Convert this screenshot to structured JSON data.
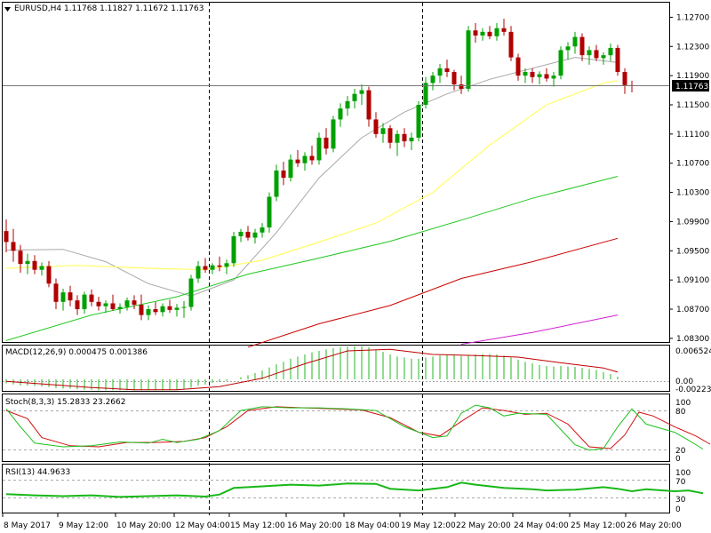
{
  "header": {
    "symbol": "EURUSD,H4",
    "ohlc": "1.11768 1.11827 1.11672 1.11763"
  },
  "price_tag": "1.11763",
  "macd": {
    "label": "MACD(12,26,9) 0.000475 0.001386",
    "ticks": [
      "0.006524",
      "0.00",
      "-0.00223"
    ]
  },
  "stoch": {
    "label": "Stoch(8,3,3) 15.2833 23.2662",
    "ticks": [
      "100",
      "80",
      "20",
      "0"
    ]
  },
  "rsi": {
    "label": "RSI(13) 44.9633",
    "ticks": [
      "100",
      "70",
      "30",
      "0"
    ]
  },
  "time_labels": [
    "8 May 2017",
    "9 May 12:00",
    "10 May 20:00",
    "12 May 04:00",
    "15 May 12:00",
    "16 May 20:00",
    "18 May 04:00",
    "19 May 12:00",
    "22 May 20:00",
    "24 May 04:00",
    "25 May 12:00",
    "26 May 20:00"
  ],
  "colors": {
    "bull": "#00a000",
    "bear": "#b00000",
    "ma_gray": "#a8a8a8",
    "ma_yellow": "#ffff66",
    "ma_green": "#22c822",
    "ma_red": "#cc0000",
    "ma_magenta": "#d020d0",
    "hist": "#22b822",
    "signal": "#c00000"
  },
  "chart_data": {
    "type": "candlestick",
    "symbol": "EURUSD",
    "timeframe": "H4",
    "price_axis": {
      "ticks": [
        "1.12700",
        "1.12300",
        "1.11900",
        "1.11500",
        "1.11100",
        "1.10700",
        "1.10300",
        "1.09900",
        "1.09500",
        "1.09100",
        "1.08700",
        "1.08300"
      ],
      "range": [
        1.0825,
        1.129
      ]
    },
    "candles": [
      [
        1.0977,
        1.0993,
        1.0948,
        1.0962
      ],
      [
        1.0962,
        1.098,
        1.0935,
        1.095
      ],
      [
        1.095,
        1.0958,
        1.092,
        1.0932
      ],
      [
        1.0932,
        1.0946,
        1.0918,
        1.0936
      ],
      [
        1.0936,
        1.0944,
        1.0918,
        1.0924
      ],
      [
        1.0924,
        1.0934,
        1.0916,
        1.0929
      ],
      [
        1.0929,
        1.0936,
        1.09,
        1.0905
      ],
      [
        1.0905,
        1.0912,
        1.087,
        1.088
      ],
      [
        1.088,
        1.0898,
        1.0868,
        1.0893
      ],
      [
        1.0893,
        1.0902,
        1.0874,
        1.0882
      ],
      [
        1.0882,
        1.0889,
        1.0862,
        1.087
      ],
      [
        1.087,
        1.0894,
        1.0864,
        1.089
      ],
      [
        1.089,
        1.0897,
        1.0874,
        1.088
      ],
      [
        1.088,
        1.0887,
        1.0868,
        1.0874
      ],
      [
        1.0874,
        1.0882,
        1.0865,
        1.0878
      ],
      [
        1.0878,
        1.089,
        1.0868,
        1.087
      ],
      [
        1.087,
        1.0878,
        1.0864,
        1.0873
      ],
      [
        1.0873,
        1.0886,
        1.0868,
        1.0882
      ],
      [
        1.0882,
        1.0889,
        1.087,
        1.0876
      ],
      [
        1.0876,
        1.089,
        1.0855,
        1.0862
      ],
      [
        1.0862,
        1.0875,
        1.0855,
        1.087
      ],
      [
        1.087,
        1.088,
        1.0862,
        1.0866
      ],
      [
        1.0866,
        1.0878,
        1.086,
        1.0874
      ],
      [
        1.0874,
        1.0883,
        1.0865,
        1.0869
      ],
      [
        1.0869,
        1.0877,
        1.086,
        1.0872
      ],
      [
        1.0872,
        1.0881,
        1.0858,
        1.0873
      ],
      [
        1.0873,
        1.0917,
        1.0868,
        1.0912
      ],
      [
        1.0912,
        1.0936,
        1.0906,
        1.0929
      ],
      [
        1.0929,
        1.094,
        1.092,
        1.0924
      ],
      [
        1.0924,
        1.0933,
        1.0918,
        1.093
      ],
      [
        1.093,
        1.0942,
        1.0922,
        1.0928
      ],
      [
        1.0928,
        1.0938,
        1.0918,
        1.0933
      ],
      [
        1.0933,
        1.0976,
        1.0928,
        1.097
      ],
      [
        1.097,
        1.098,
        1.0962,
        1.0976
      ],
      [
        1.0976,
        1.0984,
        1.0964,
        1.0968
      ],
      [
        1.0968,
        1.098,
        1.096,
        1.0975
      ],
      [
        1.0975,
        1.0988,
        1.0968,
        1.0982
      ],
      [
        1.0982,
        1.103,
        1.0975,
        1.1024
      ],
      [
        1.1024,
        1.1068,
        1.1018,
        1.106
      ],
      [
        1.106,
        1.1072,
        1.104,
        1.105
      ],
      [
        1.105,
        1.1082,
        1.1045,
        1.1075
      ],
      [
        1.1075,
        1.1088,
        1.1065,
        1.107
      ],
      [
        1.107,
        1.1085,
        1.106,
        1.108
      ],
      [
        1.108,
        1.1094,
        1.1068,
        1.1074
      ],
      [
        1.1074,
        1.1112,
        1.1068,
        1.1105
      ],
      [
        1.1105,
        1.1118,
        1.1082,
        1.109
      ],
      [
        1.109,
        1.1135,
        1.1085,
        1.113
      ],
      [
        1.113,
        1.1152,
        1.112,
        1.1145
      ],
      [
        1.1145,
        1.1162,
        1.1135,
        1.1155
      ],
      [
        1.1155,
        1.1172,
        1.1145,
        1.1165
      ],
      [
        1.1165,
        1.1178,
        1.115,
        1.117
      ],
      [
        1.117,
        1.1175,
        1.112,
        1.113
      ],
      [
        1.113,
        1.114,
        1.1105,
        1.111
      ],
      [
        1.111,
        1.1125,
        1.1098,
        1.1118
      ],
      [
        1.1118,
        1.1122,
        1.109,
        1.1098
      ],
      [
        1.1098,
        1.1115,
        1.108,
        1.111
      ],
      [
        1.111,
        1.1118,
        1.1092,
        1.11
      ],
      [
        1.11,
        1.1112,
        1.1088,
        1.1105
      ],
      [
        1.1105,
        1.1155,
        1.11,
        1.115
      ],
      [
        1.115,
        1.1188,
        1.1145,
        1.118
      ],
      [
        1.118,
        1.1195,
        1.117,
        1.119
      ],
      [
        1.119,
        1.1206,
        1.118,
        1.12
      ],
      [
        1.12,
        1.1212,
        1.1188,
        1.1195
      ],
      [
        1.1195,
        1.1198,
        1.117,
        1.1178
      ],
      [
        1.1178,
        1.119,
        1.1165,
        1.1172
      ],
      [
        1.1172,
        1.1258,
        1.1168,
        1.1252
      ],
      [
        1.1252,
        1.1262,
        1.1235,
        1.1245
      ],
      [
        1.1245,
        1.1255,
        1.1238,
        1.125
      ],
      [
        1.125,
        1.1258,
        1.124,
        1.1244
      ],
      [
        1.1244,
        1.1262,
        1.1238,
        1.1255
      ],
      [
        1.1255,
        1.1268,
        1.1245,
        1.125
      ],
      [
        1.125,
        1.1258,
        1.121,
        1.1215
      ],
      [
        1.1215,
        1.122,
        1.1183,
        1.119
      ],
      [
        1.119,
        1.12,
        1.118,
        1.1195
      ],
      [
        1.1195,
        1.12,
        1.118,
        1.1188
      ],
      [
        1.1188,
        1.1196,
        1.1178,
        1.1192
      ],
      [
        1.1192,
        1.12,
        1.1182,
        1.1186
      ],
      [
        1.1186,
        1.1195,
        1.1175,
        1.119
      ],
      [
        1.119,
        1.123,
        1.1185,
        1.1225
      ],
      [
        1.1225,
        1.1236,
        1.1212,
        1.123
      ],
      [
        1.123,
        1.125,
        1.122,
        1.1243
      ],
      [
        1.1243,
        1.1248,
        1.121,
        1.1218
      ],
      [
        1.1218,
        1.123,
        1.1205,
        1.1225
      ],
      [
        1.1225,
        1.1232,
        1.121,
        1.1214
      ],
      [
        1.1214,
        1.1222,
        1.1205,
        1.1218
      ],
      [
        1.1218,
        1.1234,
        1.121,
        1.1228
      ],
      [
        1.1228,
        1.1232,
        1.119,
        1.1195
      ],
      [
        1.1195,
        1.12,
        1.1165,
        1.1177
      ],
      [
        1.1177,
        1.1183,
        1.1167,
        1.1176
      ]
    ],
    "ma_gray": [
      [
        0,
        1.0951
      ],
      [
        8,
        1.0952
      ],
      [
        14,
        1.0935
      ],
      [
        20,
        1.0905
      ],
      [
        26,
        1.0888
      ],
      [
        32,
        1.091
      ],
      [
        38,
        1.0975
      ],
      [
        44,
        1.105
      ],
      [
        50,
        1.1105
      ],
      [
        56,
        1.114
      ],
      [
        62,
        1.1165
      ],
      [
        68,
        1.1185
      ],
      [
        74,
        1.12
      ],
      [
        80,
        1.1215
      ],
      [
        86,
        1.1208
      ]
    ],
    "ma_yellow": [
      [
        0,
        1.0926
      ],
      [
        10,
        1.093
      ],
      [
        20,
        1.0926
      ],
      [
        28,
        1.0924
      ],
      [
        36,
        1.0937
      ],
      [
        44,
        1.0962
      ],
      [
        52,
        1.0988
      ],
      [
        60,
        1.103
      ],
      [
        68,
        1.1095
      ],
      [
        76,
        1.115
      ],
      [
        84,
        1.118
      ],
      [
        86,
        1.1183
      ]
    ],
    "ma_green": [
      [
        0,
        1.0827
      ],
      [
        12,
        1.0862
      ],
      [
        24,
        1.0887
      ],
      [
        34,
        1.0918
      ],
      [
        44,
        1.094
      ],
      [
        54,
        1.0963
      ],
      [
        64,
        1.0992
      ],
      [
        74,
        1.1022
      ],
      [
        86,
        1.1052
      ]
    ],
    "ma_red": [
      [
        34,
        1.0818
      ],
      [
        44,
        1.085
      ],
      [
        54,
        1.0875
      ],
      [
        64,
        1.0912
      ],
      [
        74,
        1.0935
      ],
      [
        86,
        1.0967
      ]
    ],
    "ma_magenta": [
      [
        64,
        1.0822
      ],
      [
        74,
        1.0838
      ],
      [
        86,
        1.0862
      ]
    ],
    "macd_range": [
      -0.00223,
      0.006524
    ],
    "macd_hist": [
      -0.0008,
      -0.001,
      -0.0012,
      -0.0012,
      -0.0013,
      -0.0014,
      -0.0015,
      -0.0017,
      -0.0018,
      -0.0018,
      -0.0019,
      -0.002,
      -0.002,
      -0.0021,
      -0.0021,
      -0.0021,
      -0.0021,
      -0.0021,
      -0.0021,
      -0.0021,
      -0.0021,
      -0.0021,
      -0.0021,
      -0.002,
      -0.002,
      -0.0019,
      -0.0016,
      -0.0012,
      -0.001,
      -0.0007,
      -0.0005,
      -0.0003,
      0.0,
      0.0004,
      0.0008,
      0.0012,
      0.0017,
      0.0023,
      0.0029,
      0.0034,
      0.004,
      0.0044,
      0.0048,
      0.0052,
      0.0055,
      0.0058,
      0.006,
      0.0062,
      0.0063,
      0.0064,
      0.0064,
      0.0062,
      0.0058,
      0.0053,
      0.0048,
      0.0044,
      0.0042,
      0.004,
      0.004,
      0.0042,
      0.0044,
      0.0046,
      0.0047,
      0.0047,
      0.0045,
      0.0046,
      0.0048,
      0.0049,
      0.0049,
      0.0048,
      0.0046,
      0.0042,
      0.0038,
      0.0034,
      0.0031,
      0.0028,
      0.0026,
      0.0025,
      0.0026,
      0.0025,
      0.0024,
      0.0022,
      0.002,
      0.0018,
      0.0014,
      0.001,
      0.0005
    ],
    "macd_signal": [
      [
        0,
        -0.0004
      ],
      [
        6,
        -0.001
      ],
      [
        12,
        -0.0016
      ],
      [
        18,
        -0.002
      ],
      [
        24,
        -0.002
      ],
      [
        30,
        -0.0014
      ],
      [
        36,
        0.0002
      ],
      [
        42,
        0.003
      ],
      [
        48,
        0.0055
      ],
      [
        54,
        0.0058
      ],
      [
        60,
        0.0048
      ],
      [
        66,
        0.0046
      ],
      [
        72,
        0.0043
      ],
      [
        78,
        0.0032
      ],
      [
        84,
        0.0022
      ],
      [
        86,
        0.0014
      ]
    ],
    "stoch_main": [
      [
        0,
        88
      ],
      [
        2,
        55
      ],
      [
        4,
        25
      ],
      [
        8,
        18
      ],
      [
        12,
        20
      ],
      [
        16,
        27
      ],
      [
        20,
        25
      ],
      [
        22,
        32
      ],
      [
        24,
        26
      ],
      [
        27,
        32
      ],
      [
        30,
        48
      ],
      [
        33,
        85
      ],
      [
        36,
        92
      ],
      [
        40,
        90
      ],
      [
        44,
        90
      ],
      [
        48,
        88
      ],
      [
        52,
        85
      ],
      [
        56,
        55
      ],
      [
        60,
        35
      ],
      [
        62,
        38
      ],
      [
        64,
        80
      ],
      [
        66,
        95
      ],
      [
        68,
        90
      ],
      [
        70,
        75
      ],
      [
        72,
        80
      ],
      [
        76,
        78
      ],
      [
        80,
        22
      ],
      [
        82,
        12
      ],
      [
        84,
        15
      ],
      [
        86,
        55
      ],
      [
        88,
        88
      ],
      [
        90,
        60
      ],
      [
        94,
        45
      ],
      [
        96,
        30
      ],
      [
        98,
        14
      ]
    ],
    "stoch_signal": [
      [
        0,
        85
      ],
      [
        3,
        70
      ],
      [
        5,
        35
      ],
      [
        9,
        20
      ],
      [
        13,
        18
      ],
      [
        17,
        26
      ],
      [
        21,
        26
      ],
      [
        25,
        28
      ],
      [
        28,
        35
      ],
      [
        31,
        55
      ],
      [
        34,
        85
      ],
      [
        38,
        92
      ],
      [
        42,
        90
      ],
      [
        46,
        88
      ],
      [
        50,
        86
      ],
      [
        54,
        72
      ],
      [
        58,
        45
      ],
      [
        61,
        38
      ],
      [
        64,
        65
      ],
      [
        67,
        90
      ],
      [
        70,
        85
      ],
      [
        73,
        78
      ],
      [
        76,
        80
      ],
      [
        79,
        60
      ],
      [
        82,
        18
      ],
      [
        85,
        15
      ],
      [
        87,
        40
      ],
      [
        89,
        82
      ],
      [
        91,
        75
      ],
      [
        94,
        55
      ],
      [
        97,
        38
      ],
      [
        99,
        23
      ]
    ],
    "rsi": [
      [
        0,
        43
      ],
      [
        4,
        40
      ],
      [
        8,
        38
      ],
      [
        12,
        40
      ],
      [
        16,
        36
      ],
      [
        20,
        38
      ],
      [
        24,
        40
      ],
      [
        28,
        37
      ],
      [
        30,
        42
      ],
      [
        32,
        58
      ],
      [
        36,
        62
      ],
      [
        40,
        66
      ],
      [
        44,
        64
      ],
      [
        48,
        69
      ],
      [
        52,
        68
      ],
      [
        54,
        56
      ],
      [
        58,
        52
      ],
      [
        62,
        60
      ],
      [
        64,
        71
      ],
      [
        66,
        66
      ],
      [
        70,
        58
      ],
      [
        74,
        55
      ],
      [
        76,
        52
      ],
      [
        80,
        54
      ],
      [
        84,
        60
      ],
      [
        86,
        56
      ],
      [
        88,
        50
      ],
      [
        90,
        55
      ],
      [
        94,
        50
      ],
      [
        96,
        52
      ],
      [
        98,
        45
      ]
    ]
  }
}
